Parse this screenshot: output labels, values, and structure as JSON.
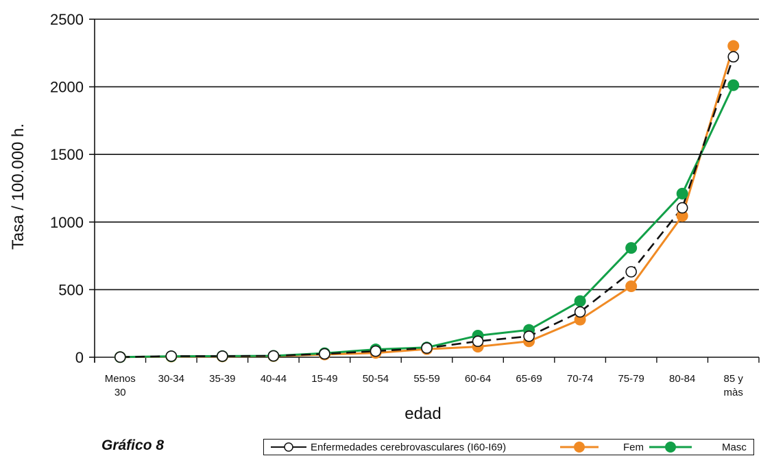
{
  "caption": "Gráfico 8",
  "chart_data": {
    "type": "line",
    "xlabel": "edad",
    "ylabel": "Tasa / 100.000 h.",
    "ylim": [
      0,
      2500
    ],
    "yticks": [
      "0",
      "500",
      "1000",
      "1500",
      "2000",
      "2500"
    ],
    "grid": true,
    "legend_position": "bottom-right",
    "categories": [
      [
        "Menos",
        "30"
      ],
      [
        "30-34"
      ],
      [
        "35-39"
      ],
      [
        "40-44"
      ],
      [
        "15-49"
      ],
      [
        "50-54"
      ],
      [
        "55-59"
      ],
      [
        "60-64"
      ],
      [
        "65-69"
      ],
      [
        "70-74"
      ],
      [
        "75-79"
      ],
      [
        "80-84"
      ],
      [
        "85 y",
        "màs"
      ]
    ],
    "series": [
      {
        "name": "Enfermedades cerebrovasculares (I60-I69)",
        "color": "#111111",
        "style": "dashed",
        "marker": "open-circle",
        "values": [
          1,
          8,
          8,
          10,
          25,
          45,
          68,
          118,
          155,
          335,
          632,
          1105,
          2222
        ]
      },
      {
        "name": "Fem",
        "color": "#f08a24",
        "style": "solid",
        "marker": "filled-circle",
        "values": [
          1,
          5,
          6,
          8,
          20,
          32,
          60,
          78,
          118,
          278,
          525,
          1045,
          2302
        ]
      },
      {
        "name": "Masc",
        "color": "#12a048",
        "style": "solid",
        "marker": "filled-circle",
        "values": [
          1,
          7,
          8,
          10,
          30,
          58,
          72,
          160,
          202,
          415,
          808,
          1210,
          2012
        ]
      }
    ]
  }
}
